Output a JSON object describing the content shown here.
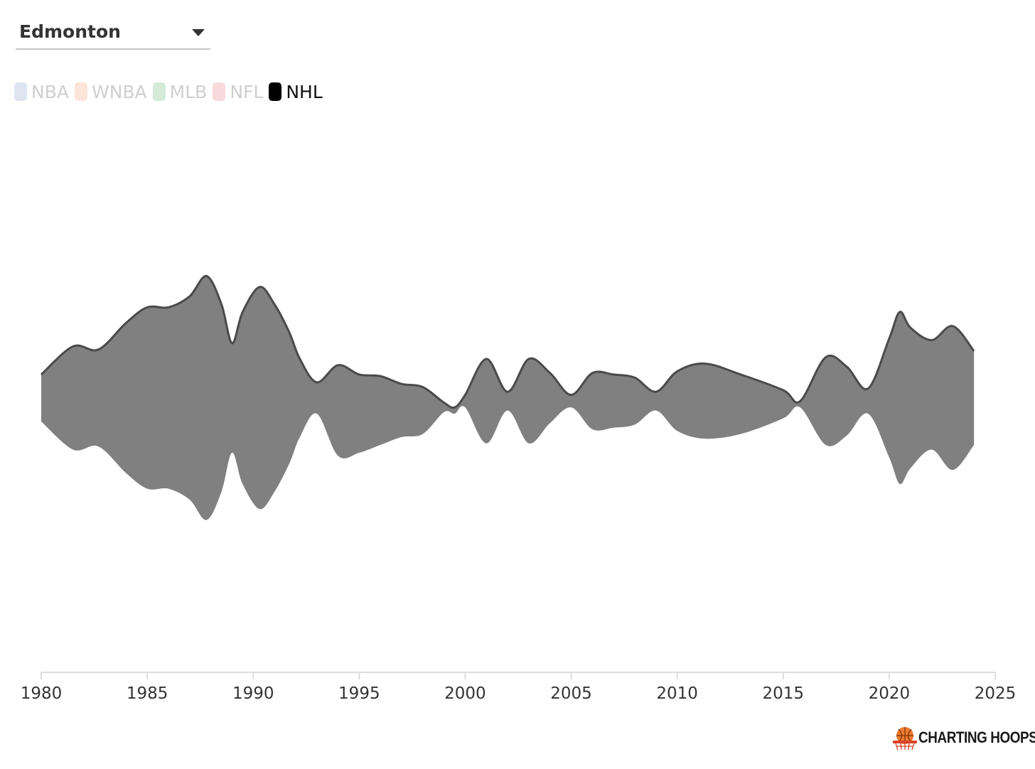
{
  "city_select": {
    "value": "Edmonton"
  },
  "legend": [
    {
      "label": "NBA",
      "color": "#7f96c4",
      "active": false
    },
    {
      "label": "WNBA",
      "color": "#f4946a",
      "active": false
    },
    {
      "label": "MLB",
      "color": "#59b15f",
      "active": false
    },
    {
      "label": "NFL",
      "color": "#e46d78",
      "active": false
    },
    {
      "label": "NHL",
      "color": "#000000",
      "active": true
    }
  ],
  "chart_data": {
    "type": "area",
    "subtype": "streamgraph",
    "xlim": [
      1980,
      2025
    ],
    "x_ticks": [
      1980,
      1985,
      1990,
      1995,
      2000,
      2005,
      2010,
      2015,
      2020,
      2025
    ],
    "series": [
      {
        "name": "NHL",
        "color": "#808080",
        "x": [
          1980,
          1981.5,
          1982.7,
          1984,
          1985,
          1986,
          1987,
          1987.8,
          1988.5,
          1989,
          1989.5,
          1990.3,
          1991,
          1991.7,
          1992.2,
          1993,
          1994,
          1995,
          1996,
          1997,
          1998,
          1999,
          1999.5,
          2000,
          2001,
          2002,
          2003,
          2004,
          2005,
          2006,
          2007,
          2008,
          2009,
          2010,
          2011.3,
          2013,
          2015,
          2015.8,
          2017,
          2018,
          2019,
          2020,
          2020.5,
          2021,
          2022,
          2023,
          2024
        ],
        "values": [
          1.5,
          3.3,
          3.1,
          4.8,
          5.8,
          5.8,
          6.5,
          7.8,
          6.0,
          3.5,
          5.5,
          7.1,
          6.0,
          4.2,
          2.5,
          1.0,
          2.9,
          2.5,
          2.2,
          1.7,
          1.5,
          0.3,
          0.2,
          0.4,
          2.7,
          0.6,
          2.7,
          1.6,
          0.4,
          1.8,
          1.7,
          1.5,
          0.6,
          1.9,
          2.4,
          1.9,
          0.9,
          0.2,
          2.8,
          2.2,
          0.8,
          3.8,
          5.5,
          4.5,
          3.5,
          4.6,
          3.0
        ],
        "centers": [
          0.0,
          0.0,
          0.0,
          0.0,
          0.0,
          0.0,
          0.0,
          0.0,
          0.0,
          0.0,
          0.0,
          0.0,
          0.0,
          0.0,
          0.0,
          0.0,
          -0.4,
          -0.5,
          -0.4,
          -0.4,
          -0.4,
          -0.3,
          -0.4,
          -0.1,
          -0.1,
          -0.1,
          -0.1,
          0.0,
          -0.1,
          -0.1,
          -0.1,
          -0.1,
          -0.1,
          -0.1,
          -0.1,
          -0.2,
          -0.2,
          -0.2,
          -0.1,
          -0.1,
          -0.1,
          0.0,
          0.0,
          0.0,
          0.1,
          0.0,
          0.0
        ]
      }
    ],
    "xlabel": "",
    "ylabel": "",
    "grid": false
  },
  "logo": {
    "text": "CHARTING HOOPS"
  }
}
